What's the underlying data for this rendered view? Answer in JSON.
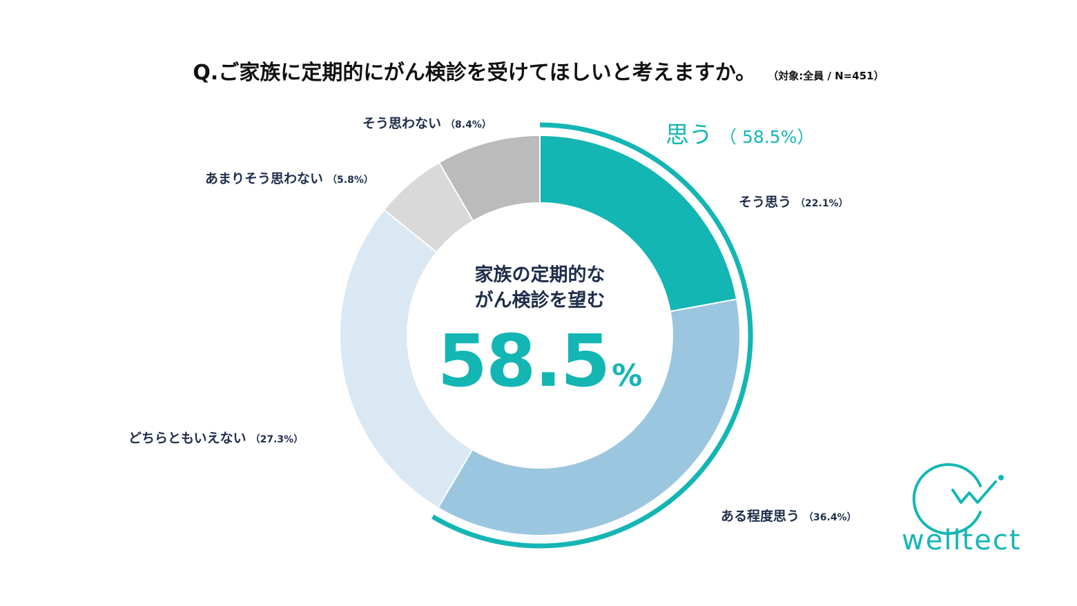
{
  "title": "Q.ご家族に定期的にがん検診を受けてほしいと考えますか。",
  "title_note": "（対象:全員 / N=451）",
  "center": {
    "line1": "家族の定期的な",
    "line2": "がん検診を望む",
    "value": "58.5",
    "unit": "%"
  },
  "group": {
    "label": "思う",
    "pct": "（ 58.5%）"
  },
  "logo_text": "welltect",
  "colors": {
    "teal": "#14b6b4",
    "light_blue": "#9bc6df",
    "pale_blue": "#d9e8f3",
    "light_gray": "#d9d9d9",
    "gray": "#bbbbbb",
    "text": "#1f2d4a"
  },
  "chart_data": {
    "type": "pie",
    "variant": "donut",
    "title": "Q.ご家族に定期的にがん検診を受けてほしいと考えますか。",
    "start": "top, clockwise",
    "slices": [
      {
        "name": "そう思う",
        "value": 22.1,
        "pct_label": "（22.1%）",
        "color": "#14b6b4"
      },
      {
        "name": "ある程度思う",
        "value": 36.4,
        "pct_label": "（36.4%）",
        "color": "#9bc6df"
      },
      {
        "name": "どちらともいえない",
        "value": 27.3,
        "pct_label": "（27.3%）",
        "color": "#d9e8f3"
      },
      {
        "name": "あまりそう思わない",
        "value": 5.8,
        "pct_label": "（5.8%）",
        "color": "#d9d9d9"
      },
      {
        "name": "そう思わない",
        "value": 8.4,
        "pct_label": "（8.4%）",
        "color": "#bbbbbb"
      }
    ],
    "group_arc": {
      "label": "思う",
      "value": 58.5,
      "covers": [
        "そう思う",
        "ある程度思う"
      ]
    }
  }
}
